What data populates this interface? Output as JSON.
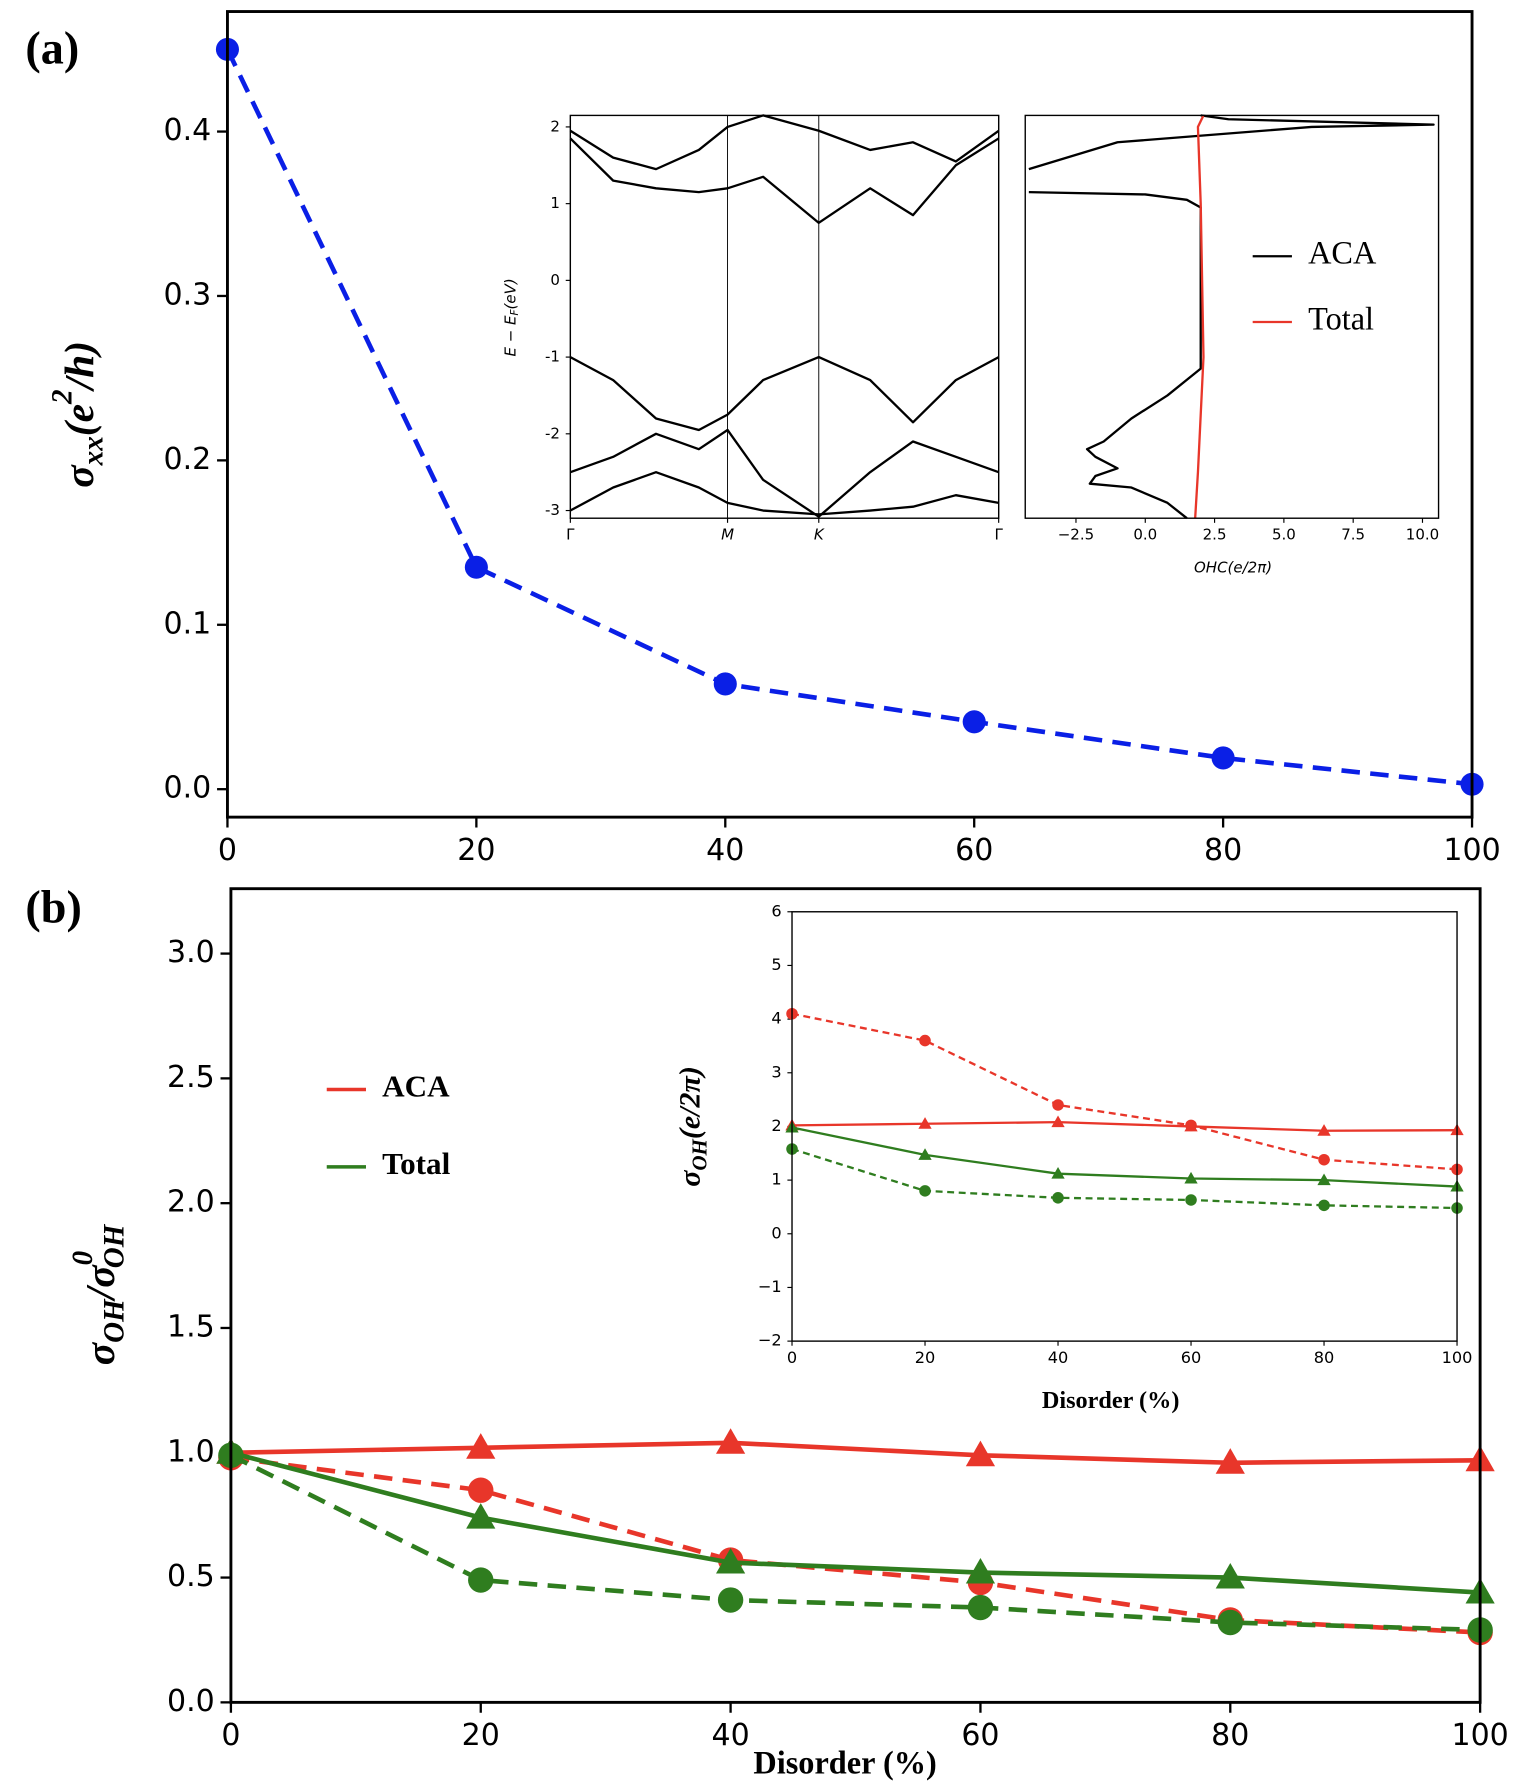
{
  "chart_data": [
    {
      "type": "line",
      "panel_label": "(a)",
      "ylabel": [
        {
          "text": "σ"
        },
        {
          "text": "xx",
          "shift": "sub"
        },
        {
          "text": "(e"
        },
        {
          "text": "2",
          "shift": "sup"
        },
        {
          "text": "/h)"
        }
      ],
      "x": [
        0,
        20,
        40,
        60,
        80,
        100
      ],
      "series": [
        {
          "color": "#0a1fe6",
          "dash": true,
          "marker": "circle",
          "values": [
            0.45,
            0.135,
            0.064,
            0.041,
            0.019,
            0.003
          ]
        }
      ],
      "xlim": [
        0,
        100
      ],
      "xticks": [
        0,
        20,
        40,
        60,
        80,
        100
      ],
      "ylim": [
        -0.017,
        0.473
      ],
      "yticks": [
        {
          "value": 0,
          "label": "0.0"
        },
        0.1,
        0.2,
        0.3,
        0.4
      ]
    },
    {
      "type": "line",
      "ylabel": [
        {
          "text": "E − E"
        },
        {
          "text": "F",
          "shift": "sub"
        },
        {
          "text": "(eV)"
        }
      ],
      "x": [
        0,
        0.1,
        0.2,
        0.3,
        0.367,
        0.45,
        0.58,
        0.7,
        0.8,
        0.9,
        1
      ],
      "series": [
        {
          "color": "#000000",
          "values": [
            1.85,
            1.3,
            1.2,
            1.15,
            1.2,
            1.35,
            0.75,
            1.2,
            0.85,
            1.5,
            1.85
          ]
        },
        {
          "color": "#000000",
          "values": [
            1.95,
            1.6,
            1.45,
            1.7,
            2.0,
            2.15,
            1.95,
            1.7,
            1.8,
            1.55,
            1.95
          ]
        },
        {
          "color": "#000000",
          "values": [
            -1.0,
            -1.3,
            -1.8,
            -1.95,
            -1.75,
            -1.3,
            -1.0,
            -1.3,
            -1.85,
            -1.3,
            -1.0
          ]
        },
        {
          "color": "#000000",
          "values": [
            -2.5,
            -2.3,
            -2.0,
            -2.2,
            -1.95,
            -2.6,
            -3.08,
            -2.5,
            -2.1,
            -2.3,
            -2.5
          ]
        },
        {
          "color": "#000000",
          "values": [
            -3.0,
            -2.7,
            -2.5,
            -2.7,
            -2.9,
            -3.0,
            -3.05,
            -3.0,
            -2.95,
            -2.8,
            -2.9
          ]
        }
      ],
      "xlim": [
        0,
        1
      ],
      "xgrid": true,
      "xticks": [
        {
          "value": 0,
          "label": "Γ"
        },
        {
          "value": 0.367,
          "label": "M"
        },
        {
          "value": 0.58,
          "label": "K"
        },
        {
          "value": 1,
          "label": "Γ"
        }
      ],
      "ylim": [
        -3.1,
        2.15
      ],
      "yticks": [
        -3,
        -2,
        -1,
        0,
        1,
        2
      ]
    },
    {
      "type": "line",
      "orientation": "horizontal",
      "xlabel": "OHC(e/2π)",
      "legend": true,
      "series": [
        {
          "name": "ACA",
          "color": "#000000",
          "y": [
            2.15,
            2.1,
            2.03,
            2.0,
            1.8,
            1.45,
            1.3,
            1.15,
            1.12,
            1.05,
            0.95,
            -1.15,
            -1.5,
            -1.8,
            -2.1,
            -2.2,
            -2.3,
            -2.45,
            -2.55,
            -2.65,
            -2.7,
            -2.9,
            -3.1
          ],
          "values": [
            2.0,
            3.0,
            10.4,
            6.0,
            -1.0,
            -4.2,
            null,
            -4.2,
            0,
            1.5,
            2.0,
            2.0,
            0.8,
            -0.5,
            -1.5,
            -2.1,
            -1.8,
            -1.0,
            -1.8,
            -2.0,
            -0.5,
            0.8,
            1.5
          ]
        },
        {
          "name": "Total",
          "color": "#e8362a",
          "y": [
            2.15,
            2.0,
            1.0,
            -1.0,
            -2.5,
            -3.1
          ],
          "values": [
            2.1,
            1.9,
            2.0,
            2.1,
            1.9,
            1.8
          ]
        }
      ],
      "xlim": [
        -4.33,
        10.58
      ],
      "xticks": [
        {
          "value": -2.5,
          "label": "−2.5"
        },
        {
          "value": 0,
          "label": "0.0"
        },
        2.5,
        {
          "value": 5,
          "label": "5.0"
        },
        7.5,
        {
          "value": 10,
          "label": "10.0"
        }
      ],
      "ylim": [
        -3.1,
        2.15
      ]
    },
    {
      "type": "line",
      "panel_label": "(b)",
      "xlabel": "Disorder (%)",
      "legend": true,
      "ylabel": [
        {
          "text": "σ"
        },
        {
          "text": "OH",
          "shift": "sub"
        },
        {
          "text": "/σ"
        },
        {
          "text": "0",
          "shift": "supsub"
        },
        {
          "text": "OH",
          "shift": "subafter"
        }
      ],
      "x": [
        0,
        20,
        40,
        60,
        80,
        100
      ],
      "series": [
        {
          "name": "ACA",
          "color": "#e8362a",
          "marker": "triangle",
          "values": [
            1.0,
            1.02,
            1.04,
            0.99,
            0.96,
            0.97
          ]
        },
        {
          "color": "#e8362a",
          "marker": "circle",
          "dash": true,
          "values": [
            0.98,
            0.85,
            0.57,
            0.48,
            0.33,
            0.28
          ]
        },
        {
          "name": "Total",
          "color": "#2f7d1f",
          "marker": "triangle",
          "values": [
            1.0,
            0.74,
            0.56,
            0.52,
            0.5,
            0.44
          ]
        },
        {
          "color": "#2f7d1f",
          "marker": "circle",
          "dash": true,
          "values": [
            0.99,
            0.49,
            0.41,
            0.38,
            0.32,
            0.29
          ]
        }
      ],
      "xlim": [
        0,
        100
      ],
      "xticks": [
        0,
        20,
        40,
        60,
        80,
        100
      ],
      "ylim": [
        0,
        3.26
      ],
      "yticks": [
        {
          "value": 0,
          "label": "0.0"
        },
        0.5,
        {
          "value": 1,
          "label": "1.0"
        },
        1.5,
        {
          "value": 2,
          "label": "2.0"
        },
        2.5,
        {
          "value": 3,
          "label": "3.0"
        }
      ]
    },
    {
      "type": "line",
      "xlabel": "Disorder (%)",
      "ylabel": [
        {
          "text": "σ"
        },
        {
          "text": "OH",
          "shift": "sub"
        },
        {
          "text": "(e/2π)"
        }
      ],
      "x": [
        0,
        20,
        40,
        60,
        80,
        100
      ],
      "series": [
        {
          "color": "#e8362a",
          "marker": "triangle",
          "values": [
            2.02,
            2.05,
            2.08,
            2.0,
            1.92,
            1.93
          ]
        },
        {
          "color": "#e8362a",
          "marker": "circle",
          "dash": true,
          "values": [
            4.1,
            3.6,
            2.4,
            2.02,
            1.38,
            1.2
          ]
        },
        {
          "color": "#2f7d1f",
          "marker": "triangle",
          "values": [
            1.98,
            1.47,
            1.12,
            1.03,
            1.0,
            0.88
          ]
        },
        {
          "color": "#2f7d1f",
          "marker": "circle",
          "dash": true,
          "values": [
            1.58,
            0.8,
            0.67,
            0.63,
            0.53,
            0.48
          ]
        }
      ],
      "xlim": [
        0,
        100
      ],
      "xticks": [
        0,
        20,
        40,
        60,
        80,
        100
      ],
      "ylim": [
        -2,
        6
      ],
      "yticks": [
        {
          "value": -2,
          "label": "−2"
        },
        {
          "value": -1,
          "label": "−1"
        },
        0,
        1,
        2,
        3,
        4,
        5,
        6
      ]
    }
  ]
}
